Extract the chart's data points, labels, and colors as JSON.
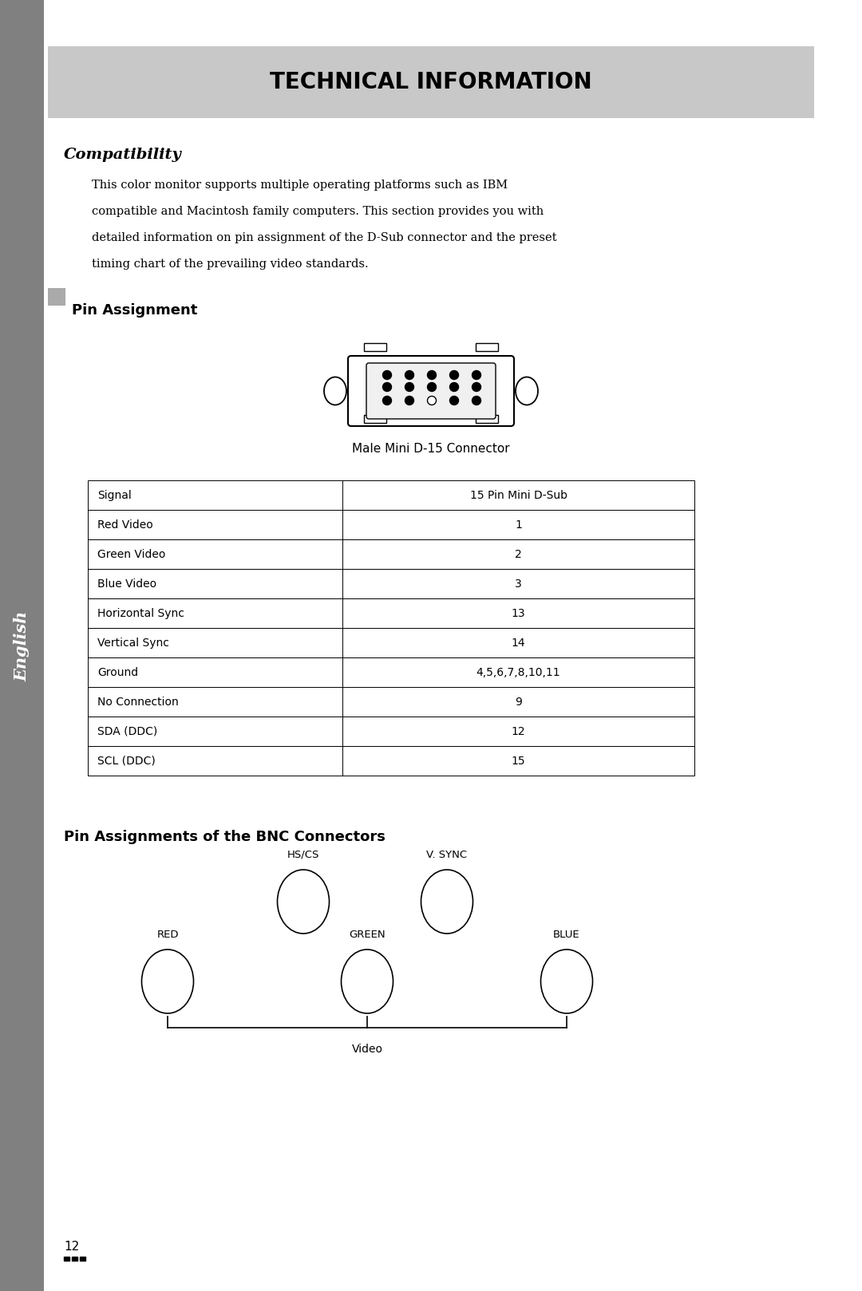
{
  "title": "TECHNICAL INFORMATION",
  "title_bg_color": "#c8c8c8",
  "title_font_size": 20,
  "sidebar_color": "#808080",
  "sidebar_text": "English",
  "compatibility_heading": "Compatibility",
  "compatibility_body": "This color monitor supports multiple operating platforms such as IBM\ncompatible and Macintosh family computers. This section provides you with\ndetailed information on pin assignment of the D-Sub connector and the preset\ntiming chart of the prevailing video standards.",
  "pin_assignment_heading": "Pin Assignment",
  "connector_label": "Male Mini D-15 Connector",
  "table_headers": [
    "Signal",
    "15 Pin Mini D-Sub"
  ],
  "table_rows": [
    [
      "Red Video",
      "1"
    ],
    [
      "Green Video",
      "2"
    ],
    [
      "Blue Video",
      "3"
    ],
    [
      "Horizontal Sync",
      "13"
    ],
    [
      "Vertical Sync",
      "14"
    ],
    [
      "Ground",
      "4,5,6,7,8,10,11"
    ],
    [
      "No Connection",
      "9"
    ],
    [
      "SDA (DDC)",
      "12"
    ],
    [
      "SCL (DDC)",
      "15"
    ]
  ],
  "bnc_heading": "Pin Assignments of the BNC Connectors",
  "page_number": "12",
  "bg_color": "#ffffff"
}
